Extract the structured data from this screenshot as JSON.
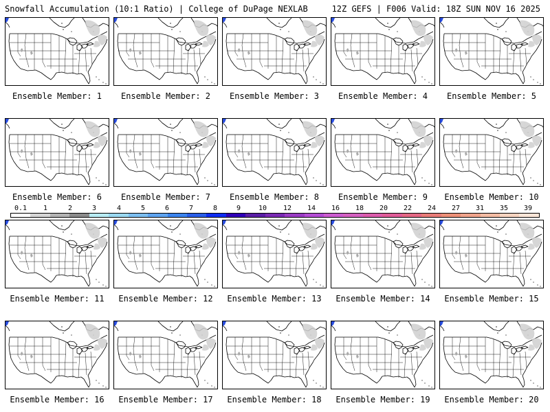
{
  "header": {
    "title_left": "Snowfall Accumulation (10:1 Ratio) | College of DuPage NEXLAB",
    "title_right": "12Z GEFS | F006 Valid: 18Z SUN NOV 16 2025"
  },
  "panels": [
    {
      "label": "Ensemble Member: 1"
    },
    {
      "label": "Ensemble Member: 2"
    },
    {
      "label": "Ensemble Member: 3"
    },
    {
      "label": "Ensemble Member: 4"
    },
    {
      "label": "Ensemble Member: 5"
    },
    {
      "label": "Ensemble Member: 6"
    },
    {
      "label": "Ensemble Member: 7"
    },
    {
      "label": "Ensemble Member: 8"
    },
    {
      "label": "Ensemble Member: 9"
    },
    {
      "label": "Ensemble Member: 10"
    },
    {
      "label": "Ensemble Member: 11"
    },
    {
      "label": "Ensemble Member: 12"
    },
    {
      "label": "Ensemble Member: 13"
    },
    {
      "label": "Ensemble Member: 14"
    },
    {
      "label": "Ensemble Member: 15"
    },
    {
      "label": "Ensemble Member: 16"
    },
    {
      "label": "Ensemble Member: 17"
    },
    {
      "label": "Ensemble Member: 18"
    },
    {
      "label": "Ensemble Member: 19"
    },
    {
      "label": "Ensemble Member: 20"
    }
  ],
  "colorbar": {
    "labels": [
      "0.1",
      "1",
      "2",
      "3",
      "4",
      "5",
      "6",
      "7",
      "8",
      "9",
      "10",
      "12",
      "14",
      "16",
      "18",
      "20",
      "22",
      "24",
      "27",
      "31",
      "35",
      "39"
    ],
    "colors": [
      "#ffffff",
      "#d6d6d6",
      "#b4b4b4",
      "#8c8c8c",
      "#b8ecf4",
      "#9ad8f0",
      "#7cbef0",
      "#5ea4f0",
      "#3c84ee",
      "#2a5ee8",
      "#0f2df2",
      "#3000b8",
      "#5a1ea6",
      "#7a2ab4",
      "#9a3cc4",
      "#b44cd4",
      "#cc5cd0",
      "#d460c0",
      "#dc5cac",
      "#e05c98",
      "#e46884",
      "#e87c78",
      "#ec9078",
      "#f0a48c",
      "#f4bca4",
      "#f8d4c0",
      "#fbe6d8"
    ]
  }
}
